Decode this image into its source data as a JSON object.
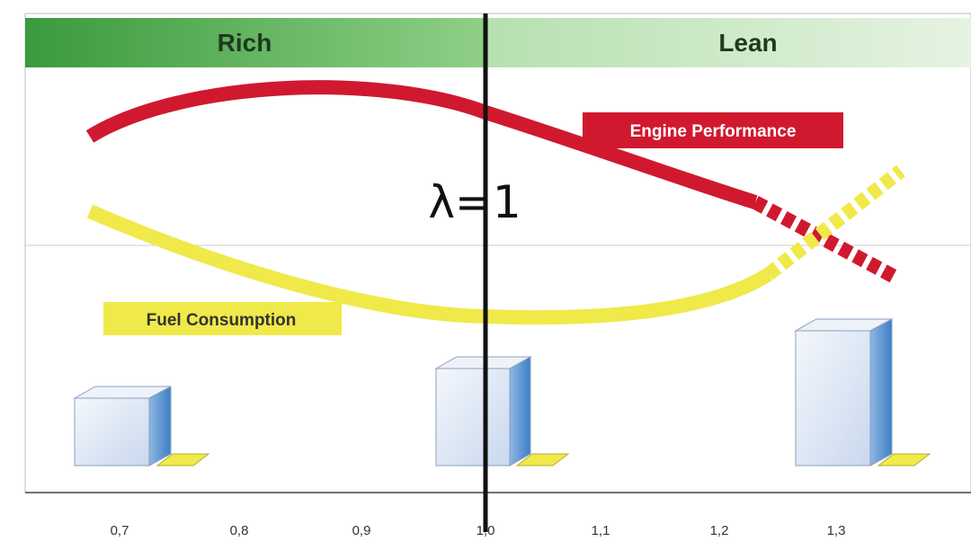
{
  "header": {
    "left": "Rich",
    "right": "Lean"
  },
  "marker": "λ=1",
  "curves": {
    "performance": "Engine Performance",
    "consumption": "Fuel Consumption"
  },
  "axis": {
    "ticks": [
      "0,7",
      "0,8",
      "0,9",
      "1,0",
      "1,1",
      "1,2",
      "1,3"
    ]
  }
}
